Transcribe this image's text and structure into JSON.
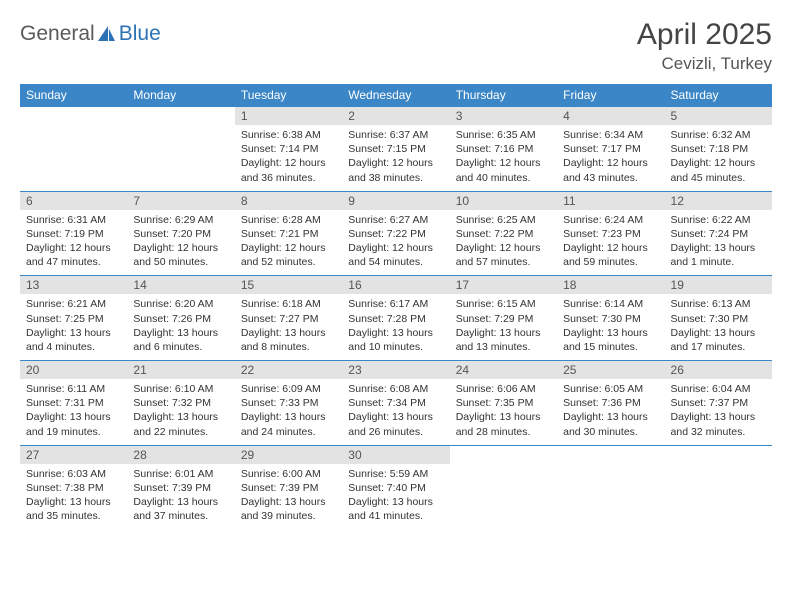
{
  "logo": {
    "general": "General",
    "blue": "Blue"
  },
  "title": "April 2025",
  "location": "Cevizli, Turkey",
  "weekdays": [
    "Sunday",
    "Monday",
    "Tuesday",
    "Wednesday",
    "Thursday",
    "Friday",
    "Saturday"
  ],
  "colors": {
    "header_bg": "#3b86c7",
    "header_text": "#ffffff",
    "daynum_bg": "#e3e3e3",
    "logo_gray": "#5a5a5a",
    "logo_blue": "#2d72b5"
  },
  "weeks": [
    [
      null,
      null,
      {
        "n": "1",
        "sr": "6:38 AM",
        "ss": "7:14 PM",
        "dl": "12 hours and 36 minutes."
      },
      {
        "n": "2",
        "sr": "6:37 AM",
        "ss": "7:15 PM",
        "dl": "12 hours and 38 minutes."
      },
      {
        "n": "3",
        "sr": "6:35 AM",
        "ss": "7:16 PM",
        "dl": "12 hours and 40 minutes."
      },
      {
        "n": "4",
        "sr": "6:34 AM",
        "ss": "7:17 PM",
        "dl": "12 hours and 43 minutes."
      },
      {
        "n": "5",
        "sr": "6:32 AM",
        "ss": "7:18 PM",
        "dl": "12 hours and 45 minutes."
      }
    ],
    [
      {
        "n": "6",
        "sr": "6:31 AM",
        "ss": "7:19 PM",
        "dl": "12 hours and 47 minutes."
      },
      {
        "n": "7",
        "sr": "6:29 AM",
        "ss": "7:20 PM",
        "dl": "12 hours and 50 minutes."
      },
      {
        "n": "8",
        "sr": "6:28 AM",
        "ss": "7:21 PM",
        "dl": "12 hours and 52 minutes."
      },
      {
        "n": "9",
        "sr": "6:27 AM",
        "ss": "7:22 PM",
        "dl": "12 hours and 54 minutes."
      },
      {
        "n": "10",
        "sr": "6:25 AM",
        "ss": "7:22 PM",
        "dl": "12 hours and 57 minutes."
      },
      {
        "n": "11",
        "sr": "6:24 AM",
        "ss": "7:23 PM",
        "dl": "12 hours and 59 minutes."
      },
      {
        "n": "12",
        "sr": "6:22 AM",
        "ss": "7:24 PM",
        "dl": "13 hours and 1 minute."
      }
    ],
    [
      {
        "n": "13",
        "sr": "6:21 AM",
        "ss": "7:25 PM",
        "dl": "13 hours and 4 minutes."
      },
      {
        "n": "14",
        "sr": "6:20 AM",
        "ss": "7:26 PM",
        "dl": "13 hours and 6 minutes."
      },
      {
        "n": "15",
        "sr": "6:18 AM",
        "ss": "7:27 PM",
        "dl": "13 hours and 8 minutes."
      },
      {
        "n": "16",
        "sr": "6:17 AM",
        "ss": "7:28 PM",
        "dl": "13 hours and 10 minutes."
      },
      {
        "n": "17",
        "sr": "6:15 AM",
        "ss": "7:29 PM",
        "dl": "13 hours and 13 minutes."
      },
      {
        "n": "18",
        "sr": "6:14 AM",
        "ss": "7:30 PM",
        "dl": "13 hours and 15 minutes."
      },
      {
        "n": "19",
        "sr": "6:13 AM",
        "ss": "7:30 PM",
        "dl": "13 hours and 17 minutes."
      }
    ],
    [
      {
        "n": "20",
        "sr": "6:11 AM",
        "ss": "7:31 PM",
        "dl": "13 hours and 19 minutes."
      },
      {
        "n": "21",
        "sr": "6:10 AM",
        "ss": "7:32 PM",
        "dl": "13 hours and 22 minutes."
      },
      {
        "n": "22",
        "sr": "6:09 AM",
        "ss": "7:33 PM",
        "dl": "13 hours and 24 minutes."
      },
      {
        "n": "23",
        "sr": "6:08 AM",
        "ss": "7:34 PM",
        "dl": "13 hours and 26 minutes."
      },
      {
        "n": "24",
        "sr": "6:06 AM",
        "ss": "7:35 PM",
        "dl": "13 hours and 28 minutes."
      },
      {
        "n": "25",
        "sr": "6:05 AM",
        "ss": "7:36 PM",
        "dl": "13 hours and 30 minutes."
      },
      {
        "n": "26",
        "sr": "6:04 AM",
        "ss": "7:37 PM",
        "dl": "13 hours and 32 minutes."
      }
    ],
    [
      {
        "n": "27",
        "sr": "6:03 AM",
        "ss": "7:38 PM",
        "dl": "13 hours and 35 minutes."
      },
      {
        "n": "28",
        "sr": "6:01 AM",
        "ss": "7:39 PM",
        "dl": "13 hours and 37 minutes."
      },
      {
        "n": "29",
        "sr": "6:00 AM",
        "ss": "7:39 PM",
        "dl": "13 hours and 39 minutes."
      },
      {
        "n": "30",
        "sr": "5:59 AM",
        "ss": "7:40 PM",
        "dl": "13 hours and 41 minutes."
      },
      null,
      null,
      null
    ]
  ],
  "labels": {
    "sunrise": "Sunrise:",
    "sunset": "Sunset:",
    "daylight": "Daylight:"
  }
}
